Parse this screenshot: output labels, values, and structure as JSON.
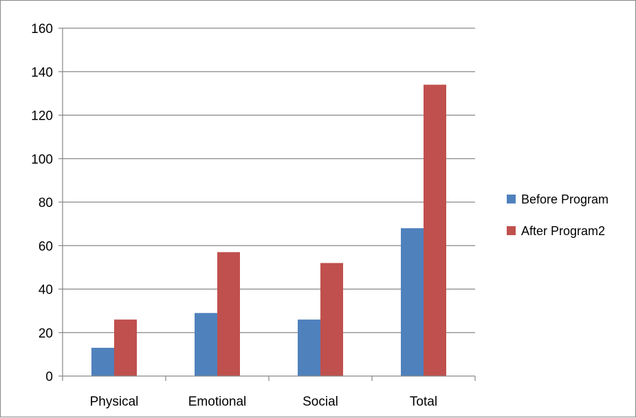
{
  "chart_data": {
    "type": "bar",
    "categories": [
      "Physical",
      "Emotional",
      "Social",
      "Total"
    ],
    "series": [
      {
        "name": "Before Program",
        "values": [
          13,
          29,
          26,
          68
        ],
        "color": "#4f81bd"
      },
      {
        "name": "After Program2",
        "values": [
          26,
          57,
          52,
          134
        ],
        "color": "#c0504d"
      }
    ],
    "ylim": [
      0,
      160
    ],
    "yticks": [
      0,
      20,
      40,
      60,
      80,
      100,
      120,
      140,
      160
    ],
    "grid": true,
    "legend": "right",
    "title": "",
    "xlabel": "",
    "ylabel": ""
  }
}
